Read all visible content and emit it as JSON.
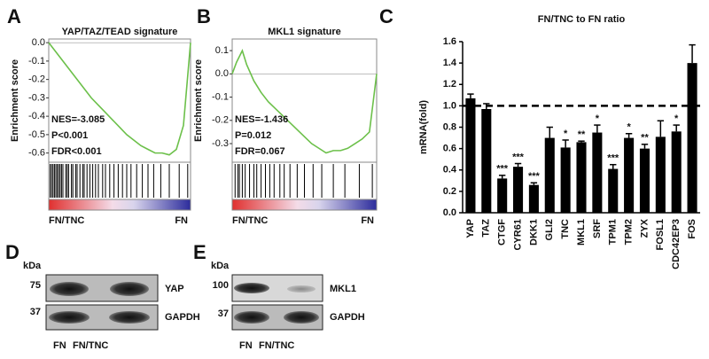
{
  "chart_data": [
    {
      "type": "line",
      "panel": "A",
      "title": "YAP/TAZ/TEAD signature",
      "y_label": "Enrichment score",
      "x": [
        0,
        5,
        10,
        15,
        20,
        25,
        30,
        35,
        40,
        45,
        50,
        55,
        60,
        65,
        70,
        75,
        80,
        85,
        90,
        95,
        100
      ],
      "values": [
        0,
        -0.05,
        -0.1,
        -0.15,
        -0.2,
        -0.25,
        -0.3,
        -0.34,
        -0.38,
        -0.42,
        -0.46,
        -0.5,
        -0.53,
        -0.56,
        -0.58,
        -0.6,
        -0.6,
        -0.61,
        -0.58,
        -0.45,
        0
      ],
      "xlim": [
        0,
        100
      ],
      "ylim": [
        -0.65,
        0.02
      ],
      "yticks": [
        {
          "value": 0,
          "label": "0.0"
        },
        -0.1,
        -0.2,
        -0.3,
        -0.4,
        -0.5,
        -0.6
      ],
      "annotations": [
        "NES=-3.085",
        "P<0.001",
        "FDR<0.001"
      ],
      "x_end_labels": [
        "FN/TNC",
        "FN"
      ],
      "hits": [
        1,
        2,
        3,
        4,
        5,
        6,
        7,
        8,
        9,
        10,
        12,
        13,
        14,
        16,
        17,
        19,
        20,
        22,
        24,
        25,
        27,
        29,
        31,
        33,
        35,
        38,
        40,
        43,
        46,
        49,
        52,
        55,
        58,
        62,
        66,
        70,
        74,
        79,
        85,
        92,
        98
      ],
      "color": "#6cc04a"
    },
    {
      "type": "line",
      "panel": "B",
      "title": "MKL1 signature",
      "y_label": "Enrichment score",
      "x": [
        0,
        3,
        7,
        10,
        15,
        20,
        25,
        30,
        35,
        40,
        45,
        50,
        55,
        60,
        65,
        70,
        75,
        80,
        85,
        90,
        95,
        98,
        100
      ],
      "values": [
        0,
        0.05,
        0.1,
        0.04,
        -0.03,
        -0.08,
        -0.12,
        -0.15,
        -0.18,
        -0.21,
        -0.24,
        -0.27,
        -0.3,
        -0.32,
        -0.34,
        -0.33,
        -0.33,
        -0.32,
        -0.3,
        -0.28,
        -0.25,
        -0.1,
        0
      ],
      "xlim": [
        0,
        100
      ],
      "ylim": [
        -0.38,
        0.15
      ],
      "yticks": [
        0.1,
        {
          "value": 0,
          "label": "0.0"
        },
        -0.1,
        -0.2,
        -0.3
      ],
      "annotations": [
        "NES=-1.436",
        "P=0.012",
        "FDR=0.067"
      ],
      "x_end_labels": [
        "FN/TNC",
        "FN"
      ],
      "hits": [
        2,
        4,
        5,
        7,
        9,
        12,
        15,
        17,
        20,
        23,
        26,
        29,
        33,
        36,
        40,
        45,
        50,
        56,
        62,
        70,
        78,
        88,
        97
      ],
      "color": "#6cc04a"
    },
    {
      "type": "bar",
      "panel": "C",
      "title": "FN/TNC to FN ratio",
      "y_label": "mRNA(fold)",
      "categories": [
        "YAP",
        "TAZ",
        "CTGF",
        "CYR61",
        "DKK1",
        "GLI2",
        "TNC",
        "MKL1",
        "SRF",
        "TPM1",
        "TPM2",
        "ZYX",
        "FOSL1",
        "CDC42EP3",
        "FOS"
      ],
      "values": [
        1.07,
        0.97,
        0.32,
        0.43,
        0.26,
        0.7,
        0.61,
        0.66,
        0.75,
        0.41,
        0.7,
        0.6,
        0.71,
        0.76,
        1.4
      ],
      "errors": [
        0.04,
        0.05,
        0.03,
        0.03,
        0.02,
        0.1,
        0.07,
        0.01,
        0.07,
        0.04,
        0.04,
        0.04,
        0.15,
        0.06,
        0.17
      ],
      "significance": [
        null,
        null,
        "***",
        "***",
        "***",
        null,
        "*",
        "**",
        "*",
        "***",
        "*",
        "**",
        null,
        "*",
        null
      ],
      "reference_line": 1.0,
      "ylim": [
        0,
        1.6
      ],
      "yticks": [
        {
          "value": 0,
          "label": "0.0"
        },
        0.2,
        0.4,
        0.6,
        0.8,
        {
          "value": 1,
          "label": "1.0"
        },
        1.2,
        1.4,
        1.6
      ],
      "color": "#000000"
    }
  ],
  "blots": [
    {
      "panel": "D",
      "unit": "kDa",
      "markers": [
        "75",
        "37"
      ],
      "proteins": [
        "YAP",
        "GAPDH"
      ],
      "lanes": [
        "FN",
        "FN/TNC"
      ]
    },
    {
      "panel": "E",
      "unit": "kDa",
      "markers": [
        "100",
        "37"
      ],
      "proteins": [
        "MKL1",
        "GAPDH"
      ],
      "lanes": [
        "FN",
        "FN/TNC"
      ]
    }
  ]
}
